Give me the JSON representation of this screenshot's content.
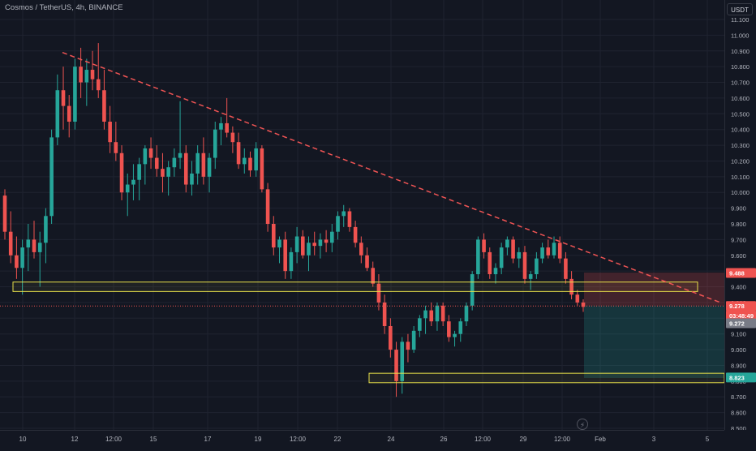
{
  "header": {
    "symbol_title": "Cosmos / TetherUS, 4h, BINANCE",
    "currency_label": "USDT"
  },
  "colors": {
    "background": "#131722",
    "up": "#26a69a",
    "down": "#ef5350",
    "trendline": "#f05454",
    "zone_border": "#e8e14a",
    "axis_text": "#b2b5be"
  },
  "price_axis": {
    "ticks": [
      "11.100",
      "11.000",
      "10.900",
      "10.800",
      "10.700",
      "10.600",
      "10.500",
      "10.400",
      "10.300",
      "10.200",
      "10.100",
      "10.000",
      "9.900",
      "9.800",
      "9.700",
      "9.600",
      "9.500",
      "9.400",
      "9.300",
      "9.200",
      "9.100",
      "9.000",
      "8.900",
      "8.800",
      "8.700",
      "8.600",
      "8.500"
    ],
    "markers": [
      {
        "label": "9.488",
        "value": 9.488,
        "bg": "#ef5350"
      },
      {
        "label": "9.278",
        "value": 9.278,
        "bg": "#ef5350"
      },
      {
        "label": "03:48:49",
        "value": 9.218,
        "bg": "#ef5350"
      },
      {
        "label": "9.272",
        "value": 9.168,
        "bg": "#787b86"
      },
      {
        "label": "8.823",
        "value": 8.823,
        "bg": "#26a69a"
      }
    ]
  },
  "time_axis": {
    "labels": [
      "10",
      "12",
      "12:00",
      "15",
      "17",
      "19",
      "12:00",
      "22",
      "24",
      "26",
      "12:00",
      "29",
      "12:00",
      "Feb",
      "3",
      "5"
    ]
  },
  "chart_data": {
    "type": "candlestick",
    "ylim": [
      8.5,
      11.2
    ],
    "candles": [
      [
        9.98,
        10.02,
        9.7,
        9.75
      ],
      [
        9.75,
        9.88,
        9.55,
        9.6
      ],
      [
        9.6,
        9.72,
        9.45,
        9.52
      ],
      [
        9.52,
        9.7,
        9.35,
        9.65
      ],
      [
        9.65,
        9.8,
        9.5,
        9.7
      ],
      [
        9.7,
        9.82,
        9.58,
        9.62
      ],
      [
        9.62,
        9.75,
        9.4,
        9.68
      ],
      [
        9.68,
        9.9,
        9.55,
        9.85
      ],
      [
        9.85,
        10.4,
        9.8,
        10.35
      ],
      [
        10.35,
        10.75,
        10.3,
        10.65
      ],
      [
        10.65,
        10.8,
        10.4,
        10.55
      ],
      [
        10.55,
        10.62,
        10.35,
        10.45
      ],
      [
        10.45,
        10.85,
        10.4,
        10.8
      ],
      [
        10.8,
        10.92,
        10.6,
        10.7
      ],
      [
        10.7,
        10.85,
        10.55,
        10.78
      ],
      [
        10.78,
        10.9,
        10.65,
        10.72
      ],
      [
        10.72,
        10.95,
        10.6,
        10.65
      ],
      [
        10.65,
        10.78,
        10.4,
        10.45
      ],
      [
        10.45,
        10.55,
        10.25,
        10.32
      ],
      [
        10.32,
        10.45,
        10.2,
        10.25
      ],
      [
        10.25,
        10.3,
        9.95,
        10.0
      ],
      [
        10.0,
        10.12,
        9.85,
        10.05
      ],
      [
        10.05,
        10.18,
        9.95,
        10.08
      ],
      [
        10.08,
        10.22,
        9.95,
        10.18
      ],
      [
        10.18,
        10.3,
        10.05,
        10.28
      ],
      [
        10.28,
        10.35,
        10.15,
        10.22
      ],
      [
        10.22,
        10.3,
        10.1,
        10.15
      ],
      [
        10.15,
        10.25,
        10.0,
        10.1
      ],
      [
        10.1,
        10.2,
        9.98,
        10.16
      ],
      [
        10.16,
        10.28,
        10.1,
        10.22
      ],
      [
        10.22,
        10.58,
        10.15,
        10.25
      ],
      [
        10.25,
        10.3,
        10.0,
        10.05
      ],
      [
        10.05,
        10.2,
        9.98,
        10.12
      ],
      [
        10.12,
        10.3,
        10.05,
        10.25
      ],
      [
        10.25,
        10.35,
        10.05,
        10.1
      ],
      [
        10.1,
        10.25,
        10.0,
        10.22
      ],
      [
        10.22,
        10.45,
        10.15,
        10.4
      ],
      [
        10.4,
        10.48,
        10.3,
        10.44
      ],
      [
        10.44,
        10.6,
        10.35,
        10.38
      ],
      [
        10.38,
        10.42,
        10.25,
        10.32
      ],
      [
        10.32,
        10.38,
        10.15,
        10.18
      ],
      [
        10.18,
        10.28,
        10.12,
        10.22
      ],
      [
        10.22,
        10.26,
        10.1,
        10.14
      ],
      [
        10.14,
        10.32,
        10.1,
        10.28
      ],
      [
        10.28,
        10.3,
        10.0,
        10.02
      ],
      [
        10.02,
        10.06,
        9.75,
        9.8
      ],
      [
        9.8,
        9.85,
        9.6,
        9.65
      ],
      [
        9.65,
        9.72,
        9.55,
        9.7
      ],
      [
        9.7,
        9.75,
        9.45,
        9.5
      ],
      [
        9.5,
        9.65,
        9.45,
        9.62
      ],
      [
        9.62,
        9.78,
        9.55,
        9.72
      ],
      [
        9.72,
        9.76,
        9.58,
        9.6
      ],
      [
        9.6,
        9.72,
        9.5,
        9.68
      ],
      [
        9.68,
        9.75,
        9.6,
        9.66
      ],
      [
        9.66,
        9.74,
        9.58,
        9.7
      ],
      [
        9.7,
        9.76,
        9.62,
        9.68
      ],
      [
        9.68,
        9.8,
        9.62,
        9.75
      ],
      [
        9.75,
        9.88,
        9.7,
        9.85
      ],
      [
        9.85,
        9.92,
        9.78,
        9.88
      ],
      [
        9.88,
        9.9,
        9.75,
        9.78
      ],
      [
        9.78,
        9.82,
        9.65,
        9.68
      ],
      [
        9.68,
        9.72,
        9.55,
        9.6
      ],
      [
        9.6,
        9.65,
        9.5,
        9.52
      ],
      [
        9.52,
        9.56,
        9.4,
        9.42
      ],
      [
        9.42,
        9.48,
        9.25,
        9.3
      ],
      [
        9.3,
        9.35,
        9.1,
        9.15
      ],
      [
        9.15,
        9.2,
        8.95,
        9.0
      ],
      [
        9.0,
        9.05,
        8.7,
        8.8
      ],
      [
        8.8,
        9.08,
        8.72,
        9.05
      ],
      [
        9.05,
        9.1,
        8.92,
        9.0
      ],
      [
        9.0,
        9.15,
        8.98,
        9.12
      ],
      [
        9.12,
        9.22,
        9.08,
        9.2
      ],
      [
        9.2,
        9.28,
        9.1,
        9.25
      ],
      [
        9.25,
        9.3,
        9.15,
        9.18
      ],
      [
        9.18,
        9.3,
        9.12,
        9.28
      ],
      [
        9.28,
        9.3,
        9.15,
        9.18
      ],
      [
        9.18,
        9.22,
        9.05,
        9.08
      ],
      [
        9.08,
        9.12,
        9.02,
        9.1
      ],
      [
        9.1,
        9.2,
        9.05,
        9.18
      ],
      [
        9.18,
        9.3,
        9.15,
        9.28
      ],
      [
        9.28,
        9.5,
        9.25,
        9.48
      ],
      [
        9.48,
        9.72,
        9.45,
        9.7
      ],
      [
        9.7,
        9.74,
        9.58,
        9.62
      ],
      [
        9.62,
        9.65,
        9.45,
        9.48
      ],
      [
        9.48,
        9.55,
        9.42,
        9.52
      ],
      [
        9.52,
        9.68,
        9.48,
        9.65
      ],
      [
        9.65,
        9.72,
        9.6,
        9.7
      ],
      [
        9.7,
        9.72,
        9.55,
        9.58
      ],
      [
        9.58,
        9.65,
        9.52,
        9.62
      ],
      [
        9.62,
        9.66,
        9.42,
        9.45
      ],
      [
        9.45,
        9.5,
        9.38,
        9.48
      ],
      [
        9.48,
        9.62,
        9.45,
        9.58
      ],
      [
        9.58,
        9.68,
        9.55,
        9.65
      ],
      [
        9.65,
        9.7,
        9.58,
        9.6
      ],
      [
        9.6,
        9.72,
        9.58,
        9.68
      ],
      [
        9.68,
        9.72,
        9.55,
        9.58
      ],
      [
        9.58,
        9.62,
        9.42,
        9.45
      ],
      [
        9.45,
        9.5,
        9.32,
        9.35
      ],
      [
        9.35,
        9.38,
        9.28,
        9.3
      ],
      [
        9.3,
        9.32,
        9.24,
        9.272
      ]
    ]
  },
  "drawings": {
    "trendline": {
      "start": [
        77,
        10.89
      ],
      "end": [
        888,
        9.3
      ]
    },
    "zone_upper": {
      "x0": 16,
      "x1": 860,
      "top": 9.43,
      "bottom": 9.37
    },
    "zone_lower": {
      "x0": 455,
      "x1": 893,
      "top": 8.85,
      "bottom": 8.79
    },
    "stop_zone": {
      "x0": 720,
      "x1": 893,
      "top": 9.49,
      "bottom": 9.28
    },
    "target_zone": {
      "x0": 720,
      "x1": 893,
      "top": 9.28,
      "bottom": 8.82
    }
  }
}
